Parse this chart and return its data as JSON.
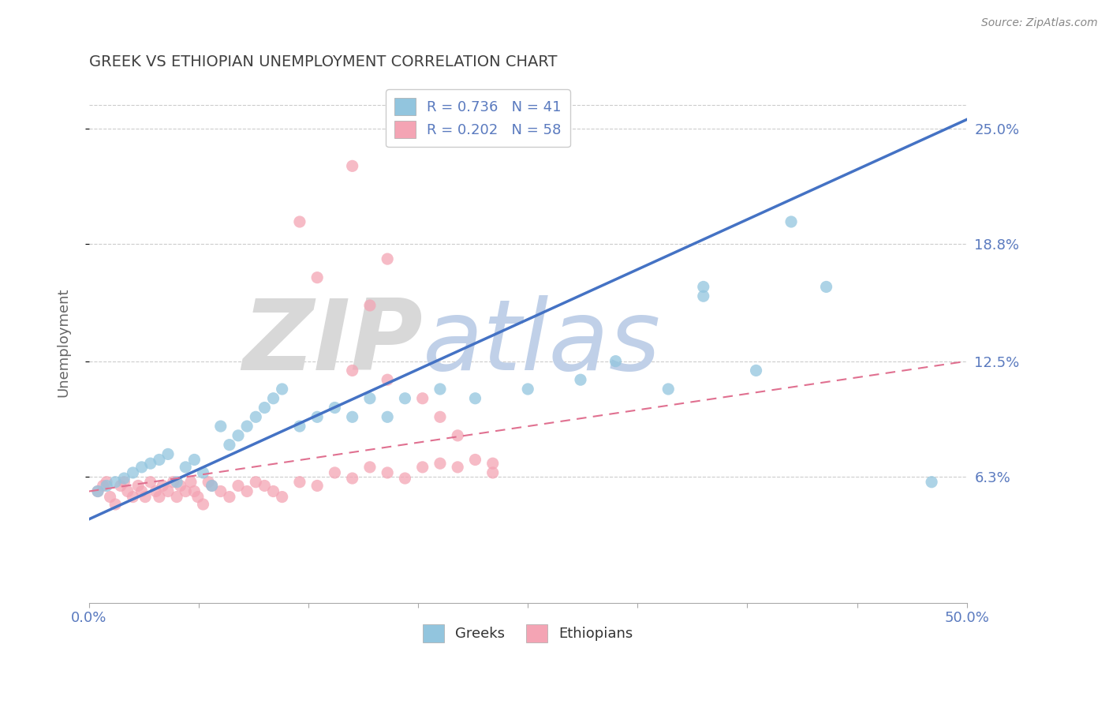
{
  "title": "GREEK VS ETHIOPIAN UNEMPLOYMENT CORRELATION CHART",
  "source": "Source: ZipAtlas.com",
  "ylabel": "Unemployment",
  "xlim": [
    0.0,
    0.5
  ],
  "ylim": [
    -0.005,
    0.275
  ],
  "yticks": [
    0.063,
    0.125,
    0.188,
    0.25
  ],
  "ytick_labels": [
    "6.3%",
    "12.5%",
    "18.8%",
    "25.0%"
  ],
  "xtick_labels_edge": [
    "0.0%",
    "50.0%"
  ],
  "greek_R": 0.736,
  "greek_N": 41,
  "ethiopian_R": 0.202,
  "ethiopian_N": 58,
  "blue_scatter_color": "#92c5de",
  "pink_scatter_color": "#f4a4b4",
  "blue_line_color": "#4472c4",
  "pink_line_color": "#e07090",
  "background_color": "#ffffff",
  "grid_color": "#cccccc",
  "title_color": "#404040",
  "tick_label_color": "#5a7abf",
  "watermark_zip_color": "#d8d8d8",
  "watermark_atlas_color": "#c0d0e8",
  "source_color": "#888888",
  "legend_text_color": "#5a7abf",
  "legend_R_color": "#5a7abf",
  "greek_scatter_x": [
    0.005,
    0.01,
    0.015,
    0.02,
    0.025,
    0.03,
    0.035,
    0.04,
    0.045,
    0.05,
    0.055,
    0.06,
    0.065,
    0.07,
    0.075,
    0.08,
    0.085,
    0.09,
    0.095,
    0.1,
    0.105,
    0.11,
    0.12,
    0.13,
    0.14,
    0.15,
    0.16,
    0.17,
    0.18,
    0.2,
    0.22,
    0.25,
    0.28,
    0.3,
    0.33,
    0.35,
    0.38,
    0.4,
    0.42,
    0.35,
    0.48
  ],
  "greek_scatter_y": [
    0.055,
    0.058,
    0.06,
    0.062,
    0.065,
    0.068,
    0.07,
    0.072,
    0.075,
    0.06,
    0.068,
    0.072,
    0.065,
    0.058,
    0.09,
    0.08,
    0.085,
    0.09,
    0.095,
    0.1,
    0.105,
    0.11,
    0.09,
    0.095,
    0.1,
    0.095,
    0.105,
    0.095,
    0.105,
    0.11,
    0.105,
    0.11,
    0.115,
    0.125,
    0.11,
    0.16,
    0.12,
    0.2,
    0.165,
    0.165,
    0.06
  ],
  "ethiopian_scatter_x": [
    0.005,
    0.008,
    0.01,
    0.012,
    0.015,
    0.018,
    0.02,
    0.022,
    0.025,
    0.028,
    0.03,
    0.032,
    0.035,
    0.038,
    0.04,
    0.042,
    0.045,
    0.048,
    0.05,
    0.052,
    0.055,
    0.058,
    0.06,
    0.062,
    0.065,
    0.068,
    0.07,
    0.075,
    0.08,
    0.085,
    0.09,
    0.095,
    0.1,
    0.105,
    0.11,
    0.12,
    0.13,
    0.14,
    0.15,
    0.16,
    0.17,
    0.18,
    0.19,
    0.2,
    0.21,
    0.22,
    0.23,
    0.15,
    0.17,
    0.16,
    0.19,
    0.2,
    0.21,
    0.23,
    0.12,
    0.13,
    0.15,
    0.17
  ],
  "ethiopian_scatter_y": [
    0.055,
    0.058,
    0.06,
    0.052,
    0.048,
    0.058,
    0.06,
    0.055,
    0.052,
    0.058,
    0.055,
    0.052,
    0.06,
    0.055,
    0.052,
    0.058,
    0.055,
    0.06,
    0.052,
    0.058,
    0.055,
    0.06,
    0.055,
    0.052,
    0.048,
    0.06,
    0.058,
    0.055,
    0.052,
    0.058,
    0.055,
    0.06,
    0.058,
    0.055,
    0.052,
    0.06,
    0.058,
    0.065,
    0.062,
    0.068,
    0.065,
    0.062,
    0.068,
    0.07,
    0.068,
    0.072,
    0.07,
    0.23,
    0.18,
    0.155,
    0.105,
    0.095,
    0.085,
    0.065,
    0.2,
    0.17,
    0.12,
    0.115
  ],
  "blue_line_x0": 0.0,
  "blue_line_y0": 0.04,
  "blue_line_x1": 0.5,
  "blue_line_y1": 0.255,
  "pink_line_x0": 0.0,
  "pink_line_y0": 0.055,
  "pink_line_x1": 0.5,
  "pink_line_y1": 0.125,
  "legend_label_blue": "R = 0.736   N = 41",
  "legend_label_pink": "R = 0.202   N = 58",
  "legend_bottom_blue": "Greeks",
  "legend_bottom_pink": "Ethiopians"
}
